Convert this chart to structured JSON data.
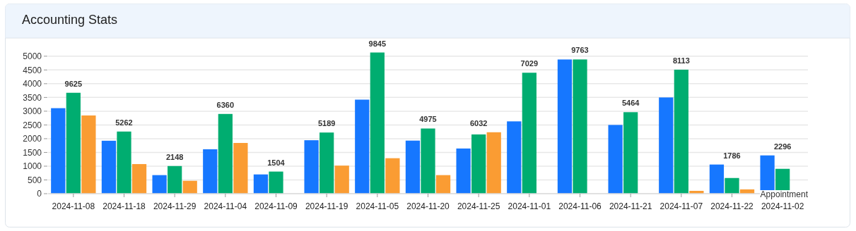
{
  "chart_data": {
    "type": "bar",
    "title": "Accounting Stats",
    "categories": [
      "2024-11-08",
      "2024-11-18",
      "2024-11-29",
      "2024-11-04",
      "2024-11-09",
      "2024-11-19",
      "2024-11-05",
      "2024-11-20",
      "2024-11-25",
      "2024-11-01",
      "2024-11-06",
      "2024-11-21",
      "2024-11-07",
      "2024-11-22",
      "2024-11-02"
    ],
    "series": [
      {
        "color": "#1677ff",
        "values": [
          3110,
          1925,
          675,
          1615,
          700,
          1944,
          3420,
          1930,
          1643,
          2630,
          4881,
          2500,
          3500,
          1060,
          1392
        ]
      },
      {
        "color": "#00ad70",
        "values": [
          3670,
          2260,
          1005,
          2900,
          804,
          2224,
          5135,
          2370,
          2155,
          4399,
          4882,
          2964,
          4510,
          570,
          904
        ]
      },
      {
        "color": "#fa9c33",
        "values": [
          2845,
          1077,
          468,
          1845,
          null,
          1021,
          1290,
          675,
          2234,
          null,
          null,
          null,
          103,
          156,
          null
        ]
      }
    ],
    "totals": [
      "9625",
      "5262",
      "2148",
      "6360",
      "1504",
      "5189",
      "9845",
      "4975",
      "6032",
      "7029",
      "9763",
      "5464",
      "8113",
      "1786",
      "2296"
    ],
    "ylim": [
      0,
      5200
    ],
    "yticks": [
      0,
      500,
      1000,
      1500,
      2000,
      2500,
      3000,
      3500,
      4000,
      4500,
      5000
    ],
    "grid": "y",
    "annotations": [
      "Appointment"
    ]
  }
}
